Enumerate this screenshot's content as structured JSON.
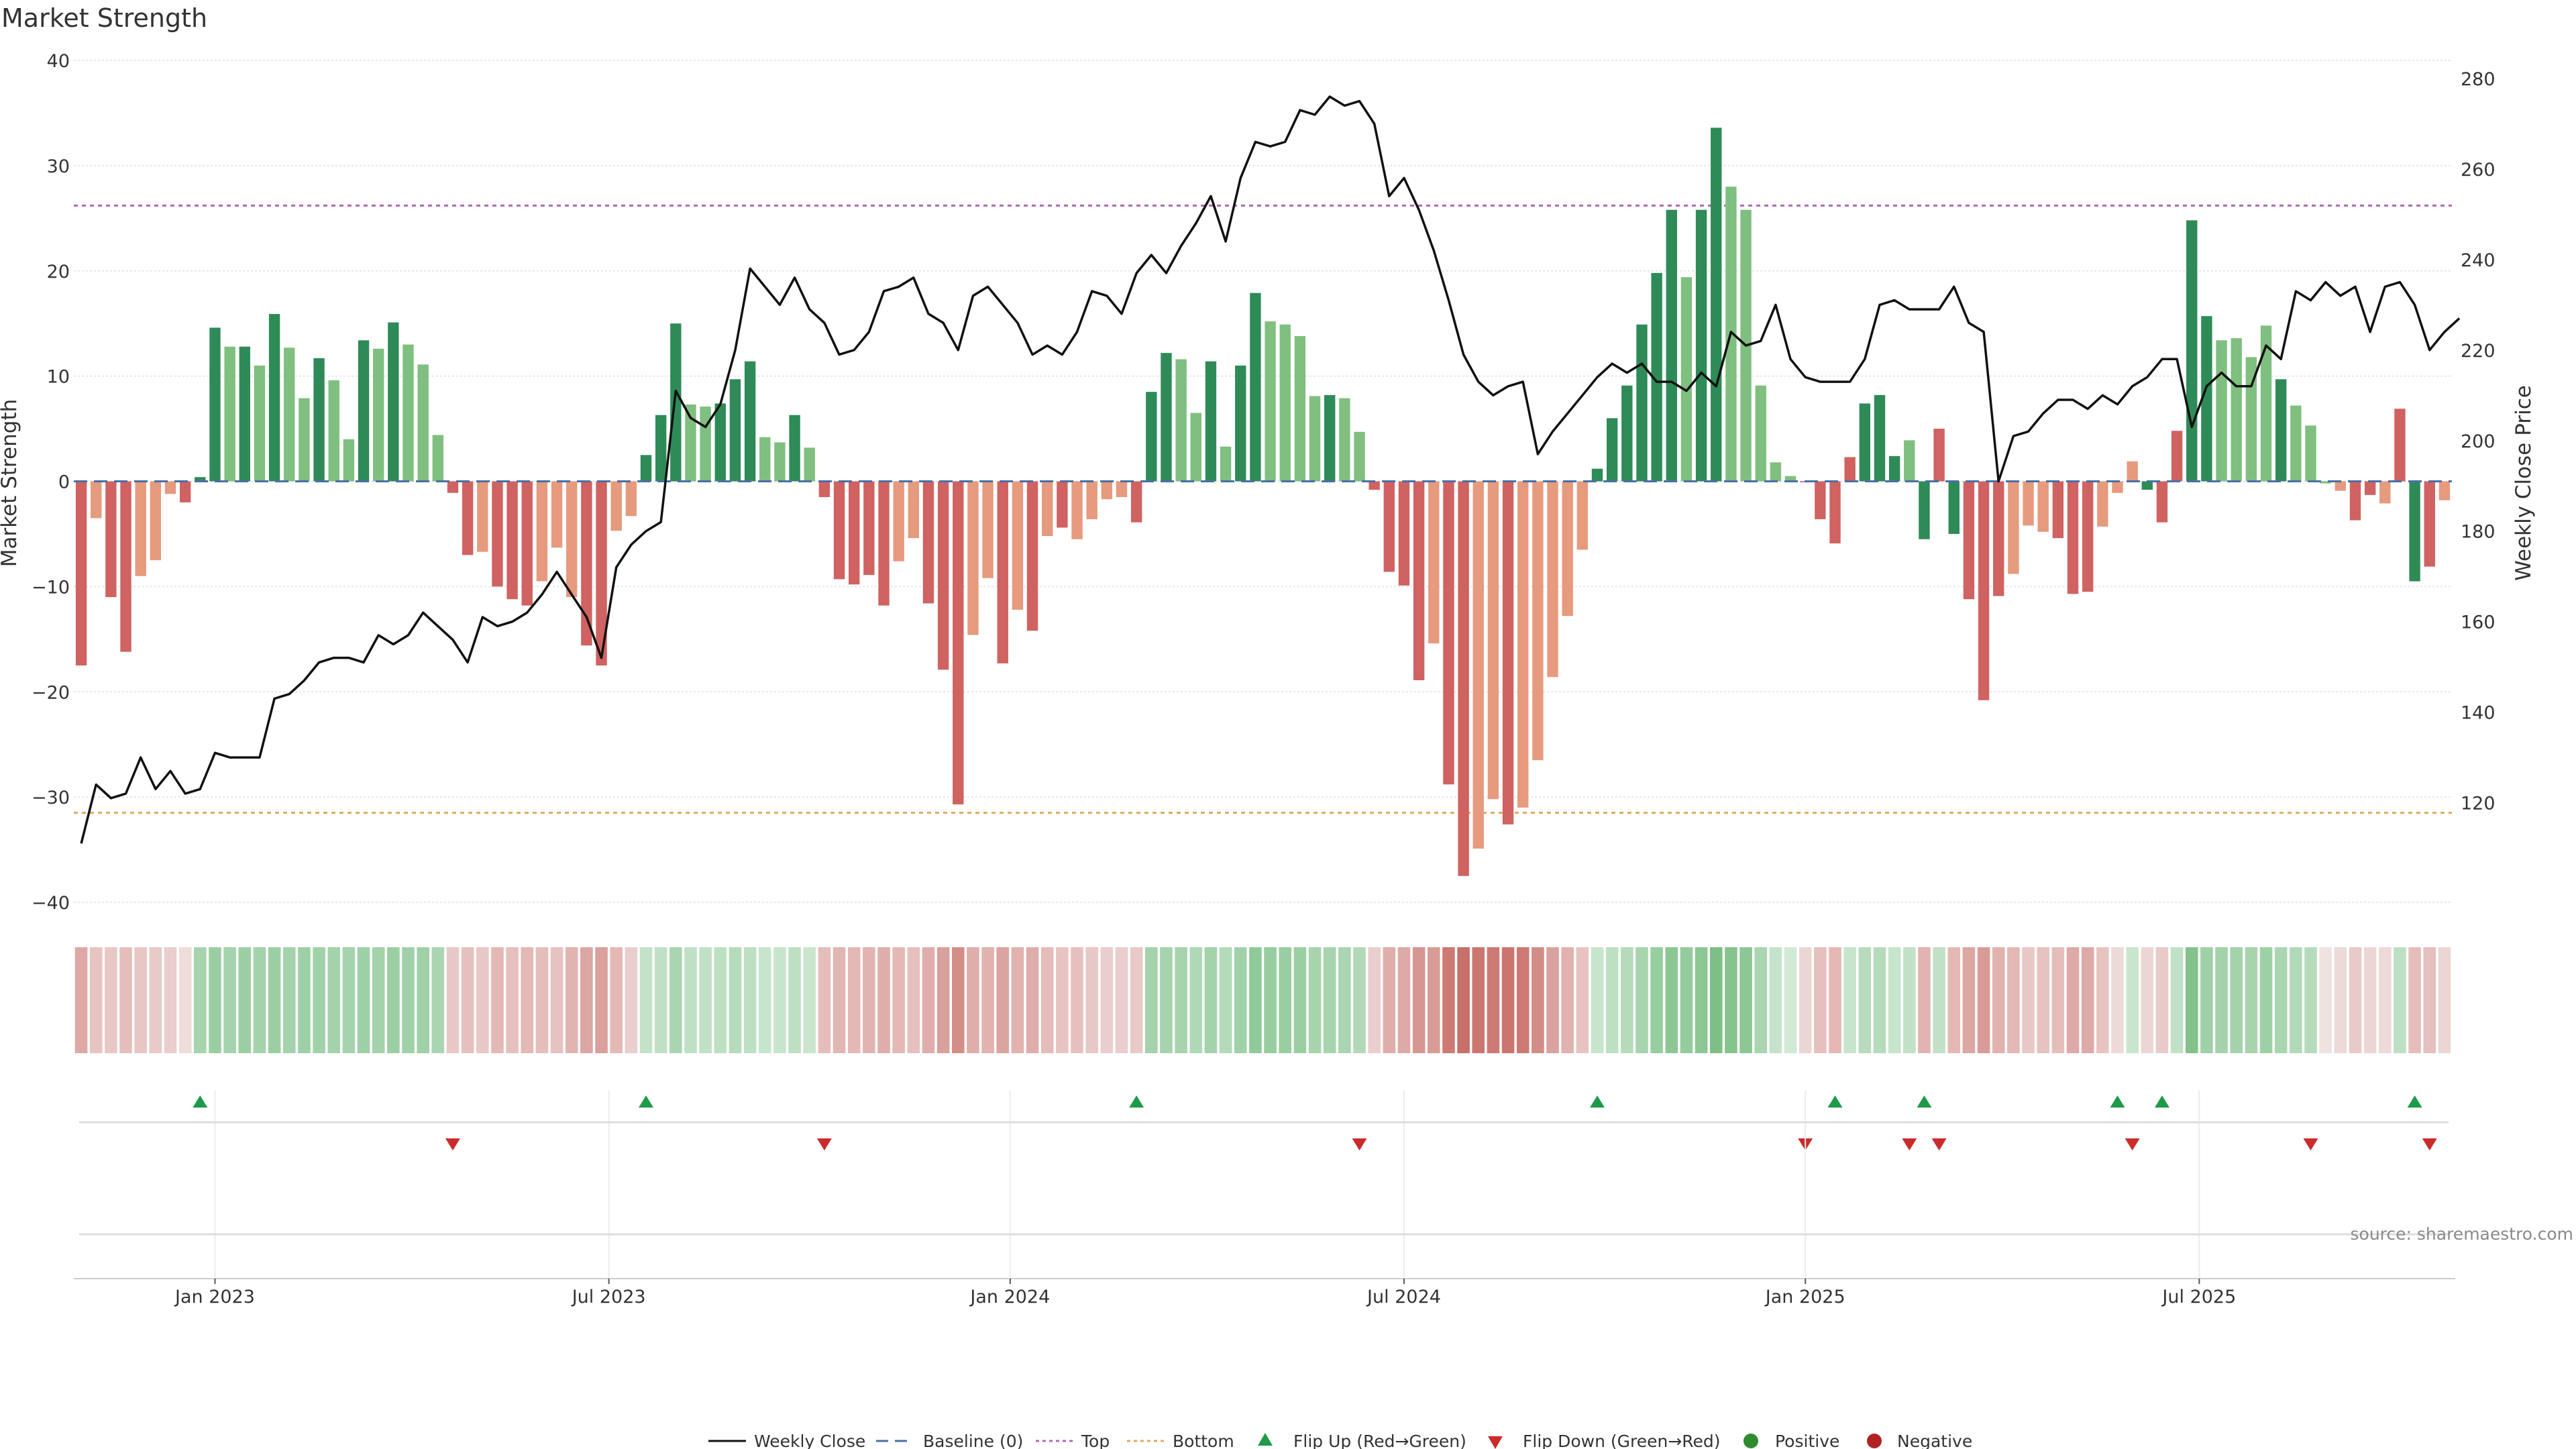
{
  "chart_data": {
    "type": "bar",
    "title": "Market Strength",
    "ylabel": "Market Strength",
    "y2label": "Weekly Close Price",
    "ylim": [
      -40,
      40
    ],
    "y2lim": [
      98,
      284
    ],
    "yticks": [
      40,
      30,
      20,
      10,
      0,
      -10,
      -20,
      -30,
      -40
    ],
    "y2ticks": [
      280,
      260,
      240,
      220,
      200,
      180,
      160,
      140,
      120
    ],
    "x_ticks": [
      "Jan 2023",
      "Jul 2023",
      "Jan 2024",
      "Jul 2024",
      "Jan 2025",
      "Jul 2025"
    ],
    "x_tick_positions": [
      9.5,
      36,
      63,
      89.5,
      116.5,
      143
    ],
    "top_line": 26.2,
    "bottom_line": -31.5,
    "grid": true,
    "legend_position": "bottom",
    "values": [
      -17.5,
      -3.5,
      -11,
      -16.2,
      -9,
      -7.5,
      -1.2,
      -2,
      0.4,
      14.6,
      12.8,
      12.8,
      11,
      15.9,
      12.7,
      7.9,
      11.7,
      9.6,
      4,
      13.4,
      12.6,
      15.1,
      13,
      11.1,
      4.4,
      -1.1,
      -7,
      -6.7,
      -10,
      -11.2,
      -11.8,
      -9.5,
      -6.3,
      -11,
      -15.6,
      -17.5,
      -4.7,
      -3.3,
      2.5,
      6.3,
      15,
      7.3,
      7.1,
      7.4,
      9.7,
      11.4,
      4.2,
      3.7,
      6.3,
      3.2,
      -1.5,
      -9.3,
      -9.8,
      -8.9,
      -11.8,
      -7.6,
      -5.4,
      -11.6,
      -17.9,
      -30.7,
      -14.6,
      -9.2,
      -17.3,
      -12.2,
      -14.2,
      -5.2,
      -4.4,
      -5.5,
      -3.6,
      -1.7,
      -1.5,
      -3.9,
      8.5,
      12.2,
      11.6,
      6.5,
      11.4,
      3.3,
      11,
      17.9,
      15.2,
      14.9,
      13.8,
      8.1,
      8.2,
      7.9,
      4.7,
      -0.8,
      -8.6,
      -9.9,
      -18.9,
      -15.4,
      -28.8,
      -37.5,
      -34.9,
      -30.2,
      -32.6,
      -31,
      -26.5,
      -18.6,
      -12.8,
      -6.5,
      1.2,
      6,
      9.1,
      14.9,
      19.8,
      25.8,
      19.4,
      25.8,
      33.6,
      28,
      25.8,
      9.1,
      1.8,
      0.5,
      -0.1,
      -3.6,
      -5.9,
      2.3,
      7.4,
      8.2,
      2.4,
      3.9,
      -5.5,
      5,
      -5,
      -11.2,
      -20.8,
      -10.9,
      -8.8,
      -4.2,
      -4.8,
      -5.4,
      -10.7,
      -10.5,
      -4.3,
      -1.1,
      1.9,
      -0.8,
      -3.9,
      4.8,
      24.8,
      15.7,
      13.4,
      13.6,
      11.8,
      14.8,
      9.7,
      7.2,
      5.3,
      -0.2,
      -0.9,
      -3.7,
      -1.3,
      -2.1,
      6.9,
      -9.5,
      -8.1,
      -1.8
    ],
    "colors": [
      "#d06262",
      "#e69a7e",
      "#d06262",
      "#d06262",
      "#e69a7e",
      "#e69a7e",
      "#e69a7e",
      "#d06262",
      "#2e8b57",
      "#2e8b57",
      "#7fbf7f",
      "#2e8b57",
      "#7fbf7f",
      "#2e8b57",
      "#7fbf7f",
      "#7fbf7f",
      "#2e8b57",
      "#7fbf7f",
      "#7fbf7f",
      "#2e8b57",
      "#7fbf7f",
      "#2e8b57",
      "#7fbf7f",
      "#7fbf7f",
      "#7fbf7f",
      "#d06262",
      "#d06262",
      "#e69a7e",
      "#d06262",
      "#d06262",
      "#d06262",
      "#e69a7e",
      "#e69a7e",
      "#e69a7e",
      "#d06262",
      "#d06262",
      "#e69a7e",
      "#e69a7e",
      "#2e8b57",
      "#2e8b57",
      "#2e8b57",
      "#7fbf7f",
      "#7fbf7f",
      "#2e8b57",
      "#2e8b57",
      "#2e8b57",
      "#7fbf7f",
      "#7fbf7f",
      "#2e8b57",
      "#7fbf7f",
      "#d06262",
      "#d06262",
      "#d06262",
      "#d06262",
      "#d06262",
      "#e69a7e",
      "#e69a7e",
      "#d06262",
      "#d06262",
      "#d06262",
      "#e69a7e",
      "#e69a7e",
      "#d06262",
      "#e69a7e",
      "#d06262",
      "#e69a7e",
      "#d06262",
      "#e69a7e",
      "#e69a7e",
      "#e69a7e",
      "#e69a7e",
      "#d06262",
      "#2e8b57",
      "#2e8b57",
      "#7fbf7f",
      "#7fbf7f",
      "#2e8b57",
      "#7fbf7f",
      "#2e8b57",
      "#2e8b57",
      "#7fbf7f",
      "#7fbf7f",
      "#7fbf7f",
      "#7fbf7f",
      "#2e8b57",
      "#7fbf7f",
      "#7fbf7f",
      "#d06262",
      "#d06262",
      "#d06262",
      "#d06262",
      "#e69a7e",
      "#d06262",
      "#d06262",
      "#e69a7e",
      "#e69a7e",
      "#d06262",
      "#e69a7e",
      "#e69a7e",
      "#e69a7e",
      "#e69a7e",
      "#e69a7e",
      "#2e8b57",
      "#2e8b57",
      "#2e8b57",
      "#2e8b57",
      "#2e8b57",
      "#2e8b57",
      "#7fbf7f",
      "#2e8b57",
      "#2e8b57",
      "#7fbf7f",
      "#7fbf7f",
      "#7fbf7f",
      "#7fbf7f",
      "#7fbf7f",
      "#d06262",
      "#d06262",
      "#d06262",
      "#d06262",
      "#2e8b57",
      "#2e8b57",
      "#2e8b57",
      "#7fbf7f",
      "#2e8b57",
      "#d06262",
      "#2e8b57",
      "#d06262",
      "#d06262",
      "#d06262",
      "#e69a7e",
      "#e69a7e",
      "#e69a7e",
      "#d06262",
      "#d06262",
      "#d06262",
      "#e69a7e",
      "#e69a7e",
      "#e69a7e",
      "#2e8b57",
      "#d06262",
      "#d06262",
      "#2e8b57",
      "#2e8b57",
      "#7fbf7f",
      "#7fbf7f",
      "#7fbf7f",
      "#7fbf7f",
      "#2e8b57",
      "#7fbf7f",
      "#7fbf7f",
      "#7fbf7f",
      "#e69a7e",
      "#d06262",
      "#d06262",
      "#e69a7e",
      "#d06262",
      "#2e8b57",
      "#d06262",
      "#e69a7e",
      "#e69a7e"
    ],
    "weekly_close": [
      111,
      124,
      121,
      122,
      130,
      123,
      127,
      122,
      123,
      131,
      130,
      130,
      130,
      143,
      144,
      147,
      151,
      152,
      152,
      151,
      157,
      155,
      157,
      162,
      159,
      156,
      151,
      161,
      159,
      160,
      162,
      166,
      171,
      166,
      161,
      152,
      172,
      177,
      180,
      182,
      211,
      205,
      203,
      208,
      220,
      238,
      234,
      230,
      236,
      229,
      226,
      219,
      220,
      224,
      233,
      234,
      236,
      228,
      226,
      220,
      232,
      234,
      230,
      226,
      219,
      221,
      219,
      224,
      233,
      232,
      228,
      237,
      241,
      237,
      243,
      248,
      254,
      244,
      258,
      266,
      265,
      266,
      273,
      272,
      276,
      274,
      275,
      270,
      254,
      258,
      251,
      242,
      231,
      219,
      213,
      210,
      212,
      213,
      197,
      202,
      206,
      210,
      214,
      217,
      215,
      217,
      213,
      213,
      211,
      215,
      212,
      224,
      221,
      222,
      230,
      218,
      214,
      213,
      213,
      213,
      218,
      230,
      231,
      229,
      229,
      229,
      234,
      226,
      224,
      191,
      201,
      202,
      206,
      209,
      209,
      207,
      210,
      208,
      212,
      214,
      218,
      218,
      203,
      212,
      215,
      212,
      212,
      221,
      218,
      233,
      231,
      235,
      232,
      234,
      224,
      234,
      235,
      230,
      220,
      224,
      227
    ],
    "flip_up_weeks": [
      8,
      38,
      71,
      102,
      118,
      124,
      137,
      140,
      157
    ],
    "flip_down_weeks": [
      25,
      50,
      86,
      116,
      123,
      125,
      138,
      150,
      158
    ],
    "colorstrip": [
      "#dea8a5",
      "#e7c4c2",
      "#e8c8c6",
      "#e5bebc",
      "#e7c6c4",
      "#e8cac8",
      "#e9cecd",
      "#eeddd8",
      "#a7d4ad",
      "#9bcfa3",
      "#a5d3ad",
      "#9bcfa3",
      "#a3d2ab",
      "#9bcfa3",
      "#a3d2ab",
      "#9dd0a6",
      "#a1d1a9",
      "#a3d2ab",
      "#a5d3ad",
      "#9dd0a6",
      "#a3d2ab",
      "#9bcfa3",
      "#a1d1a9",
      "#9fd0a7",
      "#a9d5b0",
      "#e8c8c6",
      "#e6c0be",
      "#e8c8c6",
      "#e3b8b5",
      "#e6c0be",
      "#e3b8b5",
      "#e5bebc",
      "#e6c2c0",
      "#e1b4b1",
      "#dca6a3",
      "#d9a09c",
      "#e3b8b5",
      "#e9cecd",
      "#c3e2c8",
      "#bfe0c4",
      "#a9d5b0",
      "#bfe0c4",
      "#c1e1c6",
      "#bde0c3",
      "#b5dbbb",
      "#bde0c3",
      "#c7e4cc",
      "#c7e4cc",
      "#bde0c3",
      "#c9e5ce",
      "#e5bebc",
      "#e2b6b3",
      "#e3b8b5",
      "#e1b4b1",
      "#dfaeab",
      "#e3b8b5",
      "#e6c0be",
      "#dfaeab",
      "#d9a09c",
      "#d48e88",
      "#dfaeab",
      "#e1b2ae",
      "#dba4a0",
      "#e1b2ae",
      "#dfaeab",
      "#e5bcba",
      "#e7c4c2",
      "#e6c0be",
      "#e8c8c6",
      "#e9cecd",
      "#e9cecd",
      "#e8cac8",
      "#a3d2ab",
      "#a5d3ad",
      "#a7d4ad",
      "#afd8b6",
      "#a3d2ab",
      "#b3dab9",
      "#a1d1a9",
      "#91ca9a",
      "#97cd9f",
      "#99cea1",
      "#9bcfa3",
      "#a7d4ad",
      "#a7d4ad",
      "#a9d5b0",
      "#b1d9b8",
      "#e9cecd",
      "#dfaeab",
      "#ddaaa7",
      "#d69792",
      "#d89b96",
      "#cc7a73",
      "#c7706a",
      "#cb7770",
      "#cc7a73",
      "#ca766f",
      "#cc7a73",
      "#d38c86",
      "#daa29e",
      "#e1b2ae",
      "#e7c4c2",
      "#c7e4cc",
      "#bde0c3",
      "#b5dbbb",
      "#a7d4ad",
      "#99cea1",
      "#8cc794",
      "#95cc9d",
      "#8cc794",
      "#7dbf85",
      "#86c48e",
      "#8cc794",
      "#a9d5b0",
      "#c5e3ca",
      "#d1e9d5",
      "#ecd6d4",
      "#e6c0be",
      "#e3b8b5",
      "#c7e4cc",
      "#b7dcbd",
      "#b5dbbb",
      "#c7e4cc",
      "#c1e1c6",
      "#e1b4b1",
      "#c1e1c6",
      "#e3b8b5",
      "#dca6a3",
      "#d89b96",
      "#e1b2ae",
      "#e3b8b5",
      "#e8c8c6",
      "#e6c2c0",
      "#e5bebc",
      "#ddaaa7",
      "#ddaaa7",
      "#e7c4c2",
      "#eddad8",
      "#c9e5ce",
      "#ecd6d4",
      "#e8cac8",
      "#c1e1c6",
      "#83c28b",
      "#9fd0a7",
      "#a3d2ab",
      "#a3d2ab",
      "#a7d4ad",
      "#9dd0a6",
      "#a9d5b0",
      "#b1d9b8",
      "#b5dbbb",
      "#f0e2e1",
      "#eddad8",
      "#e8cac8",
      "#ecd6d4",
      "#eddad8",
      "#bde0c3",
      "#e5bebc",
      "#e6c0be",
      "#ecd6d4"
    ]
  },
  "legend": {
    "weekly_close": "Weekly Close",
    "baseline": "Baseline (0)",
    "top": "Top",
    "bottom": "Bottom",
    "flip_up": "Flip Up (Red→Green)",
    "flip_down": "Flip Down (Green→Red)",
    "positive": "Positive",
    "negative": "Negative"
  },
  "source": "source: sharemaestro.com",
  "colors": {
    "strong_pos": "#2e8b57",
    "weak_pos": "#7fbf7f",
    "strong_neg": "#d06262",
    "weak_neg": "#e69a7e",
    "price_line": "#111111",
    "top_line": "#b06ab0",
    "bottom_line": "#e3a85e",
    "baseline": "#4a6fa5",
    "flip_up": "#1f9a4a",
    "flip_down": "#cc2b2b",
    "positive_dot": "#2e8b2e",
    "negative_dot": "#b22222"
  }
}
